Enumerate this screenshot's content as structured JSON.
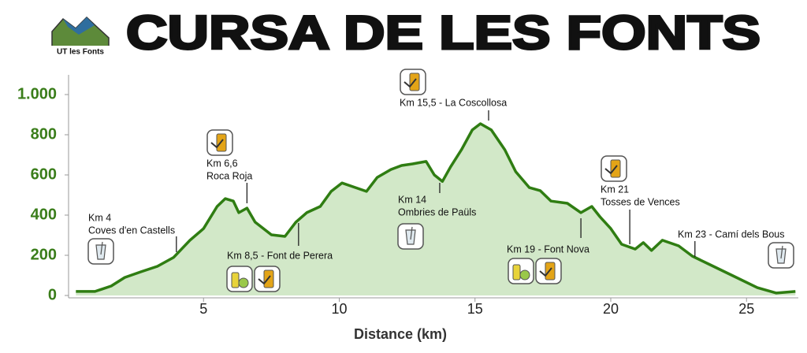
{
  "logo_text": "UT les Fonts",
  "chart_data": {
    "type": "area",
    "title": "CURSA DE LES FONTS",
    "xlabel": "Distance (km)",
    "x": [
      0.3,
      1.0,
      1.6,
      2.1,
      2.7,
      3.3,
      3.9,
      4.5,
      5.0,
      5.5,
      5.8,
      6.1,
      6.3,
      6.6,
      6.9,
      7.5,
      8.0,
      8.4,
      8.8,
      9.3,
      9.7,
      10.1,
      10.6,
      11.0,
      11.4,
      11.9,
      12.3,
      12.7,
      13.2,
      13.5,
      13.8,
      14.1,
      14.5,
      14.9,
      15.2,
      15.6,
      16.1,
      16.5,
      17.0,
      17.4,
      17.8,
      18.4,
      18.9,
      19.3,
      19.6,
      20.0,
      20.4,
      20.9,
      21.2,
      21.5,
      21.9,
      22.5,
      23.0,
      23.6,
      24.5,
      25.4,
      26.1,
      26.8
    ],
    "values": [
      20,
      20,
      47,
      90,
      118,
      145,
      190,
      275,
      333,
      443,
      482,
      470,
      412,
      435,
      365,
      302,
      294,
      365,
      412,
      443,
      518,
      560,
      537,
      518,
      588,
      627,
      647,
      655,
      667,
      600,
      568,
      640,
      725,
      824,
      855,
      824,
      725,
      616,
      537,
      522,
      470,
      459,
      412,
      443,
      392,
      333,
      255,
      231,
      263,
      224,
      275,
      247,
      196,
      157,
      98,
      39,
      12,
      20
    ],
    "color": "#2f7d12",
    "fill_color": "#d2e8c8",
    "xlim": [
      0,
      26.9
    ],
    "xticks": [
      5,
      10,
      15,
      20,
      25
    ],
    "ylim": [
      0,
      1100
    ],
    "yticks": [
      0,
      200,
      400,
      600,
      800,
      {
        "value": 1000,
        "label": "1.000"
      }
    ],
    "annotations": [
      {
        "x": 4,
        "lines": [
          "Km 4",
          "Coves d'en Castells"
        ]
      },
      {
        "x": 6.6,
        "lines": [
          "Km 6,6",
          "Roca Roja"
        ]
      },
      {
        "x": 8.5,
        "lines": [
          "Km 8,5 - Font de Perera"
        ]
      },
      {
        "x": 15.5,
        "lines": [
          "Km 15,5 - La Coscollosa"
        ]
      },
      {
        "x": 13.7,
        "lines": [
          "Km 14",
          "Ombries de Paüls"
        ]
      },
      {
        "x": 18.9,
        "lines": [
          "Km 19 - Font Nova"
        ]
      },
      {
        "x": 20.7,
        "lines": [
          "Km 21",
          "Tosses de Vences"
        ]
      },
      {
        "x": 23.1,
        "lines": [
          "Km 23 - Camí dels Bous"
        ]
      }
    ]
  }
}
